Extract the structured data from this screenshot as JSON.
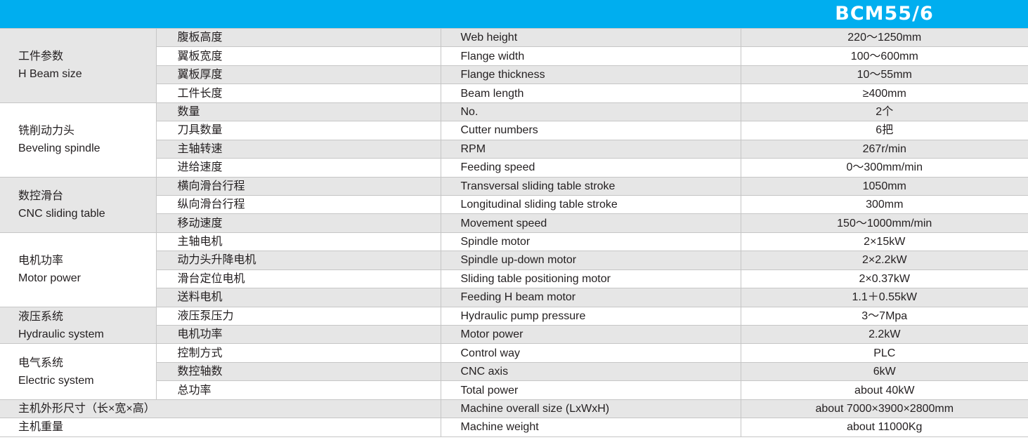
{
  "header": {
    "model": "BCM55/6",
    "color": "#00aeef"
  },
  "groups": [
    {
      "zh": "工件参数",
      "en": "H Beam size",
      "rows": [
        {
          "zh": "腹板高度",
          "en": "Web height",
          "value": "220～1250mm"
        },
        {
          "zh": "翼板宽度",
          "en": "Flange width",
          "value": "100～600mm"
        },
        {
          "zh": "翼板厚度",
          "en": "Flange thickness",
          "value": "10～55mm"
        },
        {
          "zh": "工件长度",
          "en": "Beam length",
          "value": "≥400mm"
        }
      ]
    },
    {
      "zh": "铣削动力头",
      "en": "Beveling spindle",
      "rows": [
        {
          "zh": "数量",
          "en": "No.",
          "value": "2个"
        },
        {
          "zh": "刀具数量",
          "en": "Cutter numbers",
          "value": "6把"
        },
        {
          "zh": "主轴转速",
          "en": "RPM",
          "value": "267r/min"
        },
        {
          "zh": "进给速度",
          "en": "Feeding speed",
          "value": "0～300mm/min"
        }
      ]
    },
    {
      "zh": "数控滑台",
      "en": "CNC sliding table",
      "rows": [
        {
          "zh": "横向滑台行程",
          "en": "Transversal sliding table stroke",
          "value": "1050mm"
        },
        {
          "zh": "纵向滑台行程",
          "en": "Longitudinal sliding table stroke",
          "value": "300mm"
        },
        {
          "zh": "移动速度",
          "en": "Movement speed",
          "value": "150～1000mm/min"
        }
      ]
    },
    {
      "zh": "电机功率",
      "en": "Motor power",
      "rows": [
        {
          "zh": "主轴电机",
          "en": "Spindle motor",
          "value": "2×15kW"
        },
        {
          "zh": "动力头升降电机",
          "en": "Spindle up-down motor",
          "value": "2×2.2kW"
        },
        {
          "zh": "滑台定位电机",
          "en": "Sliding table positioning motor",
          "value": "2×0.37kW"
        },
        {
          "zh": "送料电机",
          "en": "Feeding H beam motor",
          "value": "1.1＋0.55kW"
        }
      ]
    },
    {
      "zh": "液压系统",
      "en": "Hydraulic system",
      "rows": [
        {
          "zh": "液压泵压力",
          "en": "Hydraulic pump pressure",
          "value": "3～7Mpa"
        },
        {
          "zh": "电机功率",
          "en": "Motor power",
          "value": "2.2kW"
        }
      ]
    },
    {
      "zh": "电气系统",
      "en": "Electric system",
      "rows": [
        {
          "zh": "控制方式",
          "en": "Control way",
          "value": "PLC"
        },
        {
          "zh": "数控轴数",
          "en": "CNC axis",
          "value": "6kW"
        },
        {
          "zh": "总功率",
          "en": "Total power",
          "value": "about 40kW"
        }
      ]
    }
  ],
  "single_rows": [
    {
      "zh": "主机外形尺寸（长×宽×高）",
      "en": "Machine overall size (LxWxH)",
      "value": "about 7000×3900×2800mm"
    },
    {
      "zh": "主机重量",
      "en": "Machine weight",
      "value": "about 11000Kg"
    }
  ]
}
